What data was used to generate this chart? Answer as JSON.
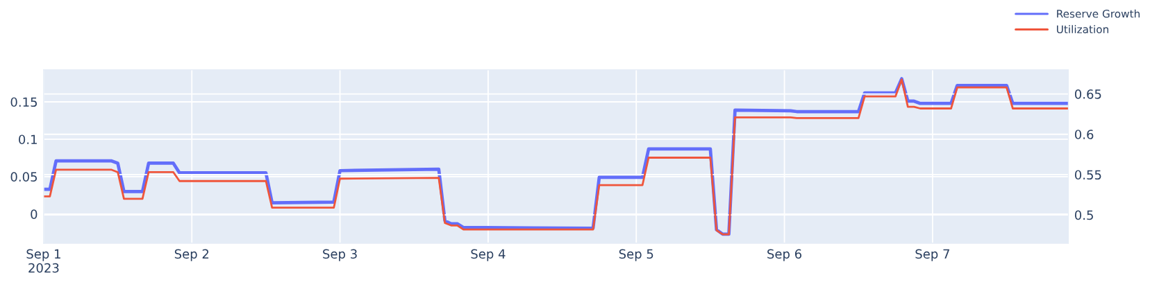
{
  "chart_data": {
    "type": "line",
    "x": [
      "2023-09-01T00:00",
      "2023-09-01T01:00",
      "2023-09-01T02:00",
      "2023-09-01T11:00",
      "2023-09-01T12:00",
      "2023-09-01T13:00",
      "2023-09-01T16:00",
      "2023-09-01T17:00",
      "2023-09-01T21:00",
      "2023-09-01T22:00",
      "2023-09-02T12:00",
      "2023-09-02T13:00",
      "2023-09-02T23:00",
      "2023-09-03T00:00",
      "2023-09-03T16:00",
      "2023-09-03T17:00",
      "2023-09-03T18:00",
      "2023-09-03T19:00",
      "2023-09-03T20:00",
      "2023-09-04T17:00",
      "2023-09-04T18:00",
      "2023-09-05T01:00",
      "2023-09-05T02:00",
      "2023-09-05T12:00",
      "2023-09-05T13:00",
      "2023-09-05T14:00",
      "2023-09-05T15:00",
      "2023-09-05T16:00",
      "2023-09-06T01:00",
      "2023-09-06T02:00",
      "2023-09-06T12:00",
      "2023-09-06T13:00",
      "2023-09-06T18:00",
      "2023-09-06T19:00",
      "2023-09-06T20:00",
      "2023-09-06T21:00",
      "2023-09-06T22:00",
      "2023-09-07T03:00",
      "2023-09-07T04:00",
      "2023-09-07T12:00",
      "2023-09-07T13:00",
      "2023-09-07T22:00"
    ],
    "series": [
      {
        "name": "Reserve Growth",
        "color": "#636efa",
        "values": [
          0.033,
          0.033,
          0.071,
          0.071,
          0.068,
          0.03,
          0.03,
          0.068,
          0.068,
          0.055,
          0.055,
          0.015,
          0.016,
          0.058,
          0.06,
          -0.009,
          -0.013,
          -0.013,
          -0.018,
          -0.019,
          0.049,
          0.049,
          0.087,
          0.087,
          -0.021,
          -0.027,
          -0.027,
          0.139,
          0.138,
          0.137,
          0.137,
          0.162,
          0.162,
          0.181,
          0.151,
          0.151,
          0.148,
          0.148,
          0.172,
          0.172,
          0.148,
          0.148
        ]
      },
      {
        "name": "Utilization",
        "color": "#ef553b",
        "axis": "y2",
        "values": [
          0.523,
          0.523,
          0.556,
          0.556,
          0.553,
          0.52,
          0.52,
          0.553,
          0.553,
          0.542,
          0.542,
          0.509,
          0.509,
          0.545,
          0.546,
          0.49,
          0.487,
          0.487,
          0.482,
          0.482,
          0.537,
          0.537,
          0.571,
          0.571,
          0.481,
          0.476,
          0.476,
          0.621,
          0.621,
          0.62,
          0.62,
          0.647,
          0.647,
          0.668,
          0.634,
          0.634,
          0.632,
          0.632,
          0.658,
          0.658,
          0.632,
          0.632
        ]
      }
    ],
    "xlim": [
      "2023-09-01T00:00",
      "2023-09-07T22:00"
    ],
    "xticks": [
      {
        "value": "2023-09-01",
        "label": "Sep 1\n2023"
      },
      {
        "value": "2023-09-02",
        "label": "Sep 2"
      },
      {
        "value": "2023-09-03",
        "label": "Sep 3"
      },
      {
        "value": "2023-09-04",
        "label": "Sep 4"
      },
      {
        "value": "2023-09-05",
        "label": "Sep 5"
      },
      {
        "value": "2023-09-06",
        "label": "Sep 6"
      },
      {
        "value": "2023-09-07",
        "label": "Sep 7"
      }
    ],
    "ylim": [
      -0.039,
      0.193
    ],
    "yticks": [
      0,
      0.05,
      0.1,
      0.15
    ],
    "y2lim": [
      0.465,
      0.68
    ],
    "y2ticks": [
      0.5,
      0.55,
      0.6,
      0.65
    ],
    "grid": true,
    "legend": "top right",
    "line_style": "solid"
  }
}
